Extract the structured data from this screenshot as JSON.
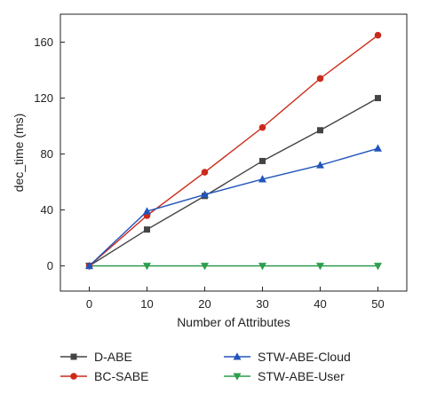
{
  "chart_data": {
    "type": "line",
    "title": "",
    "xlabel": "Number of Attributes",
    "ylabel": "dec_time (ms)",
    "x": [
      0,
      10,
      20,
      30,
      40,
      50
    ],
    "xlim": [
      -5,
      55
    ],
    "ylim": [
      -18,
      180
    ],
    "xticks": [
      0,
      10,
      20,
      30,
      40,
      50
    ],
    "yticks": [
      0,
      40,
      80,
      120,
      160
    ],
    "grid": false,
    "legend": "below",
    "series": [
      {
        "name": "D-ABE",
        "values": [
          0,
          26,
          50,
          75,
          97,
          120
        ],
        "color": "#444444",
        "marker": "square"
      },
      {
        "name": "BC-SABE",
        "values": [
          0,
          36,
          67,
          99,
          134,
          165
        ],
        "color": "#cc2a1a",
        "marker": "circle"
      },
      {
        "name": "STW-ABE-Cloud",
        "values": [
          0,
          39,
          51,
          62,
          72,
          84
        ],
        "color": "#2255bb",
        "marker": "triangle-up"
      },
      {
        "name": "STW-ABE-User",
        "values": [
          0,
          0,
          0,
          0,
          0,
          0
        ],
        "color": "#2e9e4e",
        "marker": "triangle-down"
      }
    ]
  }
}
